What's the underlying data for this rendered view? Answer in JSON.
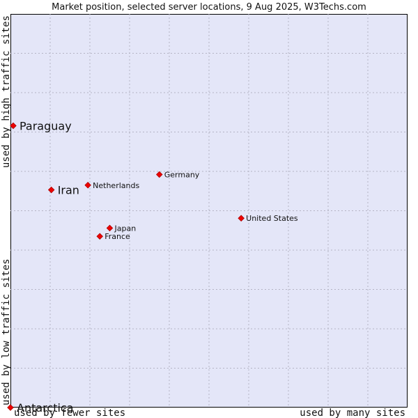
{
  "chart_data": {
    "type": "scatter",
    "title": "Market position, selected server locations, 9 Aug 2025, W3Techs.com",
    "x_axis": {
      "label_low": "used by fewer sites",
      "label_high": "used by many sites",
      "range": [
        0,
        100
      ]
    },
    "y_axis": {
      "label_low": "used by low traffic sites",
      "label_high": "used by high traffic sites",
      "range": [
        0,
        100
      ]
    },
    "grid": true,
    "points": [
      {
        "name": "Paraguay",
        "x": 0.7,
        "y": 71.6,
        "highlight": true
      },
      {
        "name": "Iran",
        "x": 10.3,
        "y": 55.3,
        "highlight": true
      },
      {
        "name": "Netherlands",
        "x": 19.5,
        "y": 56.5,
        "highlight": false
      },
      {
        "name": "Germany",
        "x": 37.5,
        "y": 59.2,
        "highlight": false
      },
      {
        "name": "United States",
        "x": 58.1,
        "y": 48.1,
        "highlight": false
      },
      {
        "name": "Japan",
        "x": 25.0,
        "y": 45.6,
        "highlight": false
      },
      {
        "name": "France",
        "x": 22.5,
        "y": 43.5,
        "highlight": false
      },
      {
        "name": "Antarctica",
        "x": 0.0,
        "y": 0.0,
        "highlight": true
      }
    ],
    "colors": {
      "plot_background": "#e4e6f8",
      "grid": "#b4b4c4",
      "marker": "#ee0000",
      "marker_edge": "#aa0000",
      "frame": "#000000"
    }
  }
}
